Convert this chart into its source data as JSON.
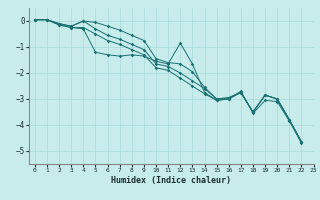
{
  "xlabel": "Humidex (Indice chaleur)",
  "xlim": [
    -0.5,
    23
  ],
  "ylim": [
    -5.5,
    0.5
  ],
  "xticks": [
    0,
    1,
    2,
    3,
    4,
    5,
    6,
    7,
    8,
    9,
    10,
    11,
    12,
    13,
    14,
    15,
    16,
    17,
    18,
    19,
    20,
    21,
    22,
    23
  ],
  "yticks": [
    0,
    -1,
    -2,
    -3,
    -4,
    -5
  ],
  "background_color": "#c8ecec",
  "grid_color": "#a8d8d8",
  "line_color": "#1a7070",
  "lines": [
    [
      0.05,
      0.05,
      -0.15,
      -0.25,
      -0.3,
      -1.2,
      -1.3,
      -1.35,
      -1.3,
      -1.35,
      -1.55,
      -1.65,
      -0.85,
      -1.65,
      -2.75,
      -3.05,
      -3.0,
      -2.7,
      -3.55,
      -3.05,
      -3.1,
      -3.85,
      -4.7
    ],
    [
      0.05,
      0.05,
      -0.1,
      -0.2,
      -0.0,
      -0.05,
      -0.2,
      -0.35,
      -0.55,
      -0.75,
      -1.45,
      -1.6,
      -1.65,
      -1.95,
      -2.55,
      -3.0,
      -2.95,
      -2.75,
      -3.5,
      -2.85,
      -3.0,
      -3.8,
      -4.65
    ],
    [
      0.05,
      0.05,
      -0.1,
      -0.2,
      -0.0,
      -0.3,
      -0.55,
      -0.7,
      -0.9,
      -1.1,
      -1.65,
      -1.75,
      -2.0,
      -2.3,
      -2.6,
      -3.0,
      -2.95,
      -2.75,
      -3.5,
      -2.85,
      -3.0,
      -3.8,
      -4.65
    ],
    [
      0.05,
      0.05,
      -0.15,
      -0.25,
      -0.25,
      -0.5,
      -0.75,
      -0.9,
      -1.1,
      -1.3,
      -1.8,
      -1.9,
      -2.2,
      -2.5,
      -2.8,
      -3.05,
      -3.0,
      -2.75,
      -3.5,
      -2.85,
      -3.0,
      -3.8,
      -4.65
    ]
  ]
}
